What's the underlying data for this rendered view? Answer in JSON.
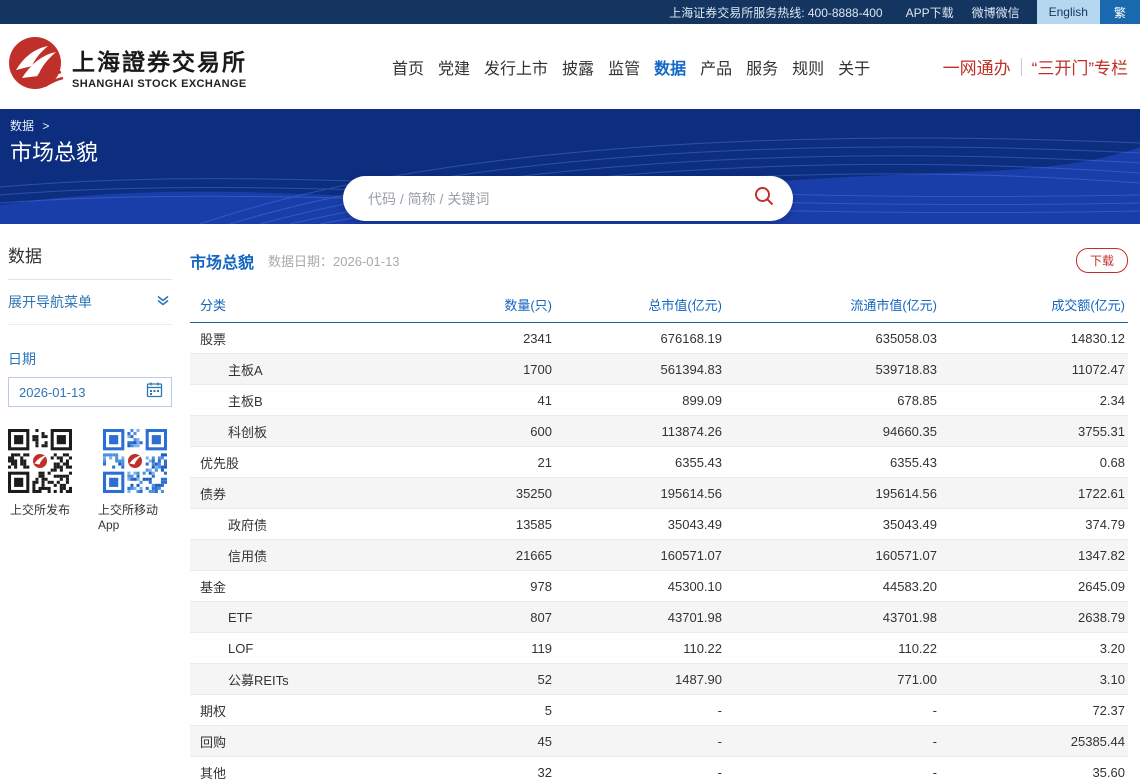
{
  "topbar": {
    "hotline": "上海证券交易所服务热线: 400-8888-400",
    "links": [
      "APP下载",
      "微博微信"
    ],
    "lang_en": "English",
    "lang_trad": "繁"
  },
  "header": {
    "logo_cn": "上海證券交易所",
    "logo_en": "SHANGHAI STOCK EXCHANGE",
    "nav": [
      {
        "label": "首页"
      },
      {
        "label": "党建"
      },
      {
        "label": "发行上市"
      },
      {
        "label": "披露"
      },
      {
        "label": "监管"
      },
      {
        "label": "数据",
        "active": true
      },
      {
        "label": "产品"
      },
      {
        "label": "服务"
      },
      {
        "label": "规则"
      },
      {
        "label": "关于"
      }
    ],
    "quick_links": [
      "一网通办",
      "“三开门”专栏"
    ]
  },
  "banner": {
    "breadcrumb": "数据",
    "breadcrumb_arrow": ">",
    "title": "市场总貌",
    "search_placeholder": "代码 / 简称 / 关键词"
  },
  "sidebar": {
    "section_title": "数据",
    "expand_menu": "展开导航菜单",
    "date_label": "日期",
    "date_value": "2026-01-13",
    "qr": [
      {
        "label": "上交所发布"
      },
      {
        "label": "上交所移动App"
      }
    ]
  },
  "main": {
    "title": "市场总貌",
    "date_caption": "数据日期：",
    "date_value": "2026-01-13",
    "download_label": "下载",
    "table": {
      "columns": [
        "分类",
        "数量(只)",
        "总市值(亿元)",
        "流通市值(亿元)",
        "成交额(亿元)"
      ],
      "rows": [
        {
          "label": "股票",
          "count": "2341",
          "total_mv": "676168.19",
          "float_mv": "635058.03",
          "turnover": "14830.12",
          "indent": false
        },
        {
          "label": "主板A",
          "count": "1700",
          "total_mv": "561394.83",
          "float_mv": "539718.83",
          "turnover": "11072.47",
          "indent": true
        },
        {
          "label": "主板B",
          "count": "41",
          "total_mv": "899.09",
          "float_mv": "678.85",
          "turnover": "2.34",
          "indent": true
        },
        {
          "label": "科创板",
          "count": "600",
          "total_mv": "113874.26",
          "float_mv": "94660.35",
          "turnover": "3755.31",
          "indent": true
        },
        {
          "label": "优先股",
          "count": "21",
          "total_mv": "6355.43",
          "float_mv": "6355.43",
          "turnover": "0.68",
          "indent": false
        },
        {
          "label": "债券",
          "count": "35250",
          "total_mv": "195614.56",
          "float_mv": "195614.56",
          "turnover": "1722.61",
          "indent": false
        },
        {
          "label": "政府债",
          "count": "13585",
          "total_mv": "35043.49",
          "float_mv": "35043.49",
          "turnover": "374.79",
          "indent": true
        },
        {
          "label": "信用债",
          "count": "21665",
          "total_mv": "160571.07",
          "float_mv": "160571.07",
          "turnover": "1347.82",
          "indent": true
        },
        {
          "label": "基金",
          "count": "978",
          "total_mv": "45300.10",
          "float_mv": "44583.20",
          "turnover": "2645.09",
          "indent": false
        },
        {
          "label": "ETF",
          "count": "807",
          "total_mv": "43701.98",
          "float_mv": "43701.98",
          "turnover": "2638.79",
          "indent": true
        },
        {
          "label": "LOF",
          "count": "119",
          "total_mv": "110.22",
          "float_mv": "110.22",
          "turnover": "3.20",
          "indent": true
        },
        {
          "label": "公募REITs",
          "count": "52",
          "total_mv": "1487.90",
          "float_mv": "771.00",
          "turnover": "3.10",
          "indent": true
        },
        {
          "label": "期权",
          "count": "5",
          "total_mv": "-",
          "float_mv": "-",
          "turnover": "72.37",
          "indent": false
        },
        {
          "label": "回购",
          "count": "45",
          "total_mv": "-",
          "float_mv": "-",
          "turnover": "25385.44",
          "indent": false
        },
        {
          "label": "其他",
          "count": "32",
          "total_mv": "-",
          "float_mv": "-",
          "turnover": "35.60",
          "indent": false
        }
      ]
    }
  },
  "colors": {
    "brand_red": "#c0302a",
    "link_blue": "#1566c0",
    "sidebar_blue": "#2e75b6",
    "banner_navy": "#0d2e7e",
    "topbar_navy": "#14355f",
    "row_alt": "#f5f5f5"
  }
}
